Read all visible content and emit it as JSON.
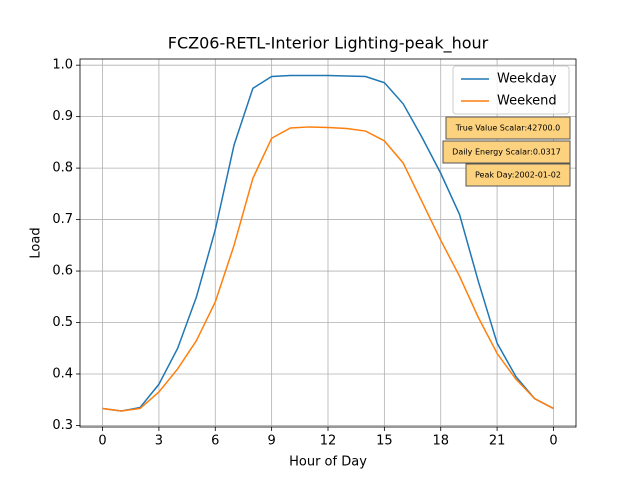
{
  "chart_data": {
    "type": "line",
    "title": "FCZ06-RETL-Interior Lighting-peak_hour",
    "x_label": "Hour of Day",
    "y_label": "Load",
    "x": [
      0,
      1,
      2,
      3,
      4,
      5,
      6,
      7,
      8,
      9,
      10,
      11,
      12,
      13,
      14,
      15,
      16,
      17,
      18,
      19,
      20,
      21,
      22,
      23,
      24
    ],
    "series": [
      {
        "name": "Weekday",
        "color": "#1f77b4",
        "values": [
          0.333,
          0.328,
          0.335,
          0.38,
          0.45,
          0.55,
          0.68,
          0.845,
          0.955,
          0.978,
          0.98,
          0.98,
          0.98,
          0.979,
          0.978,
          0.966,
          0.925,
          0.86,
          0.79,
          0.71,
          0.58,
          0.46,
          0.395,
          0.352,
          0.333
        ]
      },
      {
        "name": "Weekend",
        "color": "#ff7f0e",
        "values": [
          0.333,
          0.328,
          0.333,
          0.365,
          0.41,
          0.465,
          0.54,
          0.65,
          0.78,
          0.858,
          0.878,
          0.88,
          0.879,
          0.877,
          0.872,
          0.853,
          0.81,
          0.735,
          0.66,
          0.59,
          0.51,
          0.44,
          0.39,
          0.352,
          0.333
        ]
      }
    ],
    "xlim": [
      -1.2,
      25.2
    ],
    "xticks": [
      0,
      3,
      6,
      9,
      12,
      15,
      18,
      21,
      {
        "value": 24,
        "label": "0"
      }
    ],
    "ylim": [
      0.297,
      1.012
    ],
    "yticks": [
      0.3,
      0.4,
      0.5,
      0.6,
      0.7,
      0.8,
      0.9,
      {
        "value": 1,
        "label": "1.0"
      }
    ],
    "grid": true,
    "legend": "upper right",
    "annotations": [
      "True Value Scalar:42700.0",
      "Daily Energy Scalar:0.0317",
      "Peak Day:2002-01-02"
    ]
  }
}
